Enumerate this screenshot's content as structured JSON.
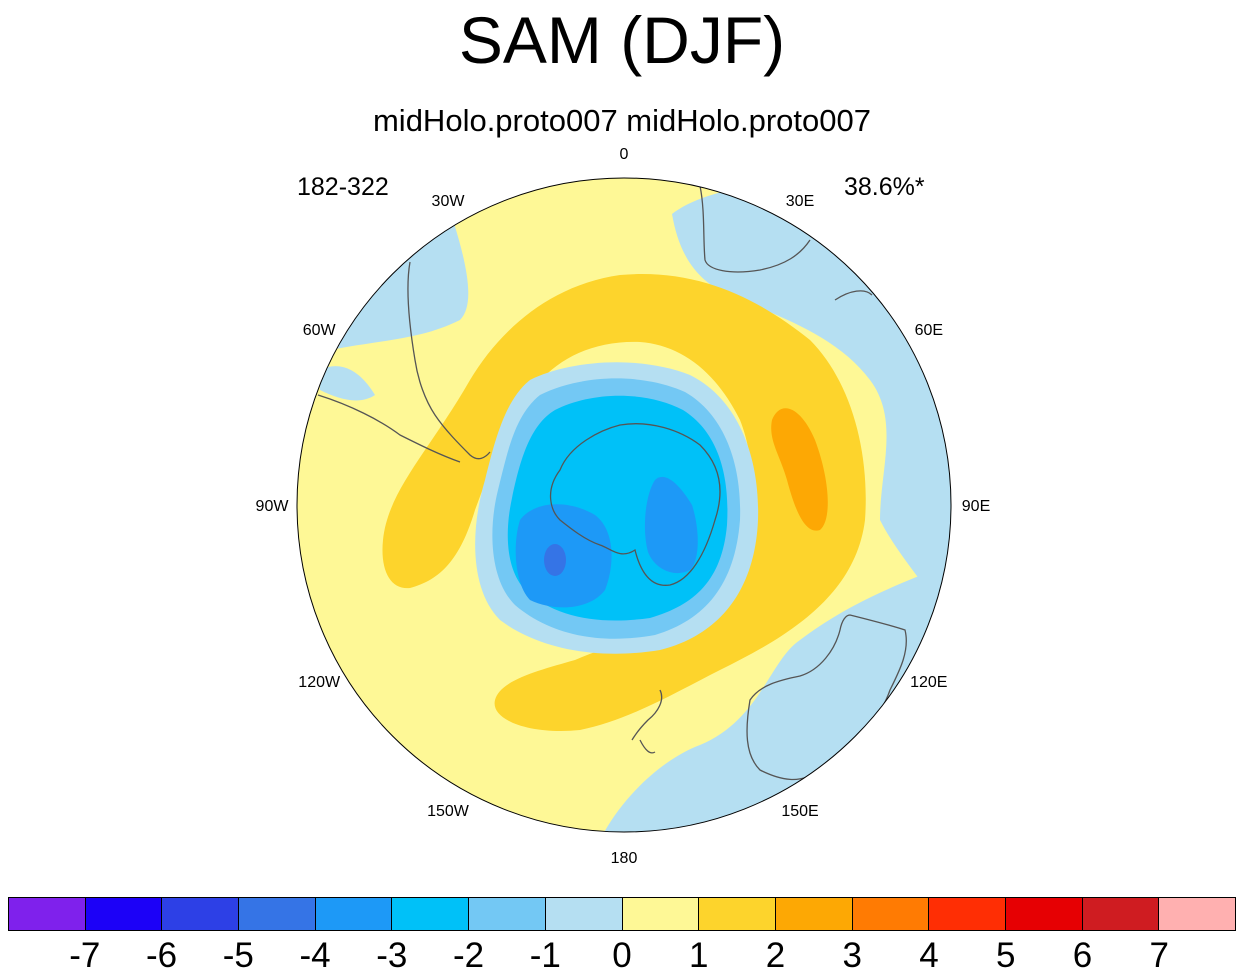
{
  "title": "SAM (DJF)",
  "subtitle": "midHolo.proto007  midHolo.proto007",
  "period": "182-322",
  "variance": "38.6%*",
  "lon_labels": [
    "0",
    "30E",
    "60E",
    "90E",
    "120E",
    "150E",
    "180",
    "150W",
    "120W",
    "90W",
    "60W",
    "30W"
  ],
  "colors": {
    "background": "#ffffff",
    "coast": "#555555",
    "levels": [
      "#7F21EC",
      "#1C01F7",
      "#2D40E6",
      "#3574E6",
      "#1D99F7",
      "#00C1F8",
      "#73C8F4",
      "#B5DFF2",
      "#FEF896",
      "#FDD42C",
      "#FDA804",
      "#FF7B03",
      "#FF2E04",
      "#E60003",
      "#CF1C21",
      "#FFB0B0"
    ]
  },
  "colorbar_labels": [
    "-7",
    "-6",
    "-5",
    "-4",
    "-3",
    "-2",
    "-1",
    "0",
    "1",
    "2",
    "3",
    "4",
    "5",
    "6",
    "7"
  ]
}
